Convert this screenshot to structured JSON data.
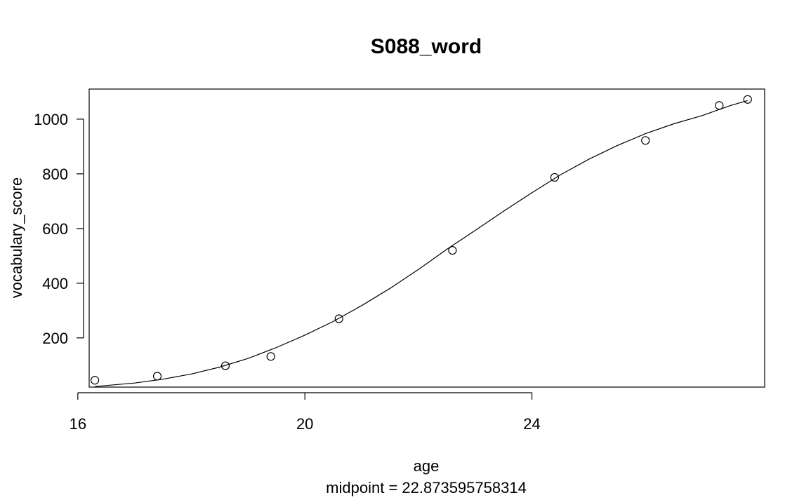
{
  "chart_data": {
    "type": "scatter",
    "title": "S088_word",
    "xlabel": "age",
    "subtitle": "midpoint = 22.873595758314",
    "ylabel": "vocabulary_score",
    "xlim": [
      16.2,
      28.1
    ],
    "ylim": [
      20,
      1110
    ],
    "x_ticks": [
      16,
      20,
      24
    ],
    "y_ticks": [
      200,
      400,
      600,
      800,
      1000
    ],
    "grid": false,
    "series": [
      {
        "kind": "points",
        "marker": "open-circle",
        "x": [
          16.3,
          17.4,
          18.6,
          19.4,
          20.6,
          22.6,
          24.4,
          26.0,
          27.3,
          27.8
        ],
        "y": [
          45,
          60,
          98,
          132,
          270,
          520,
          787,
          922,
          1050,
          1072
        ]
      },
      {
        "kind": "fit-line",
        "x": [
          16.3,
          17.0,
          17.5,
          18.0,
          18.5,
          19.0,
          19.5,
          20.0,
          20.5,
          21.0,
          21.5,
          22.0,
          22.5,
          23.0,
          23.5,
          24.0,
          24.5,
          25.0,
          25.5,
          26.0,
          26.5,
          27.0,
          27.5,
          27.8
        ],
        "y": [
          22,
          35,
          49,
          68,
          93,
          125,
          165,
          210,
          260,
          318,
          381,
          450,
          524,
          593,
          663,
          731,
          796,
          853,
          903,
          947,
          983,
          1013,
          1050,
          1068
        ]
      }
    ]
  }
}
